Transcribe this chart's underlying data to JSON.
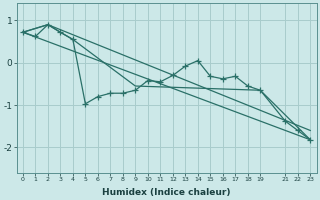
{
  "xlabel": "Humidex (Indice chaleur)",
  "bg_color": "#cce8e8",
  "grid_color": "#a8cccc",
  "line_color": "#2a7068",
  "xlim": [
    -0.5,
    23.5
  ],
  "ylim": [
    -2.6,
    1.4
  ],
  "yticks": [
    -2,
    -1,
    0,
    1
  ],
  "xticks": [
    0,
    1,
    2,
    3,
    4,
    5,
    6,
    7,
    8,
    9,
    10,
    11,
    12,
    13,
    14,
    15,
    16,
    17,
    18,
    19,
    21,
    22,
    23
  ],
  "xtick_labels": [
    "0",
    "1",
    "2",
    "3",
    "4",
    "5",
    "6",
    "7",
    "8",
    "9",
    "10",
    "11",
    "12",
    "13",
    "14",
    "15",
    "16",
    "17",
    "18",
    "19",
    "21",
    "22",
    "23"
  ],
  "jagged_x": [
    0,
    1,
    2,
    3,
    4,
    5,
    6,
    7,
    8,
    9,
    10,
    11,
    12,
    13,
    14,
    15,
    16,
    17,
    18,
    19,
    21,
    22,
    23
  ],
  "jagged_y": [
    0.72,
    0.62,
    0.9,
    0.72,
    0.55,
    -0.97,
    -0.8,
    -0.72,
    -0.72,
    -0.65,
    -0.42,
    -0.45,
    -0.3,
    -0.08,
    0.05,
    -0.32,
    -0.38,
    -0.32,
    -0.55,
    -0.65,
    -1.38,
    -1.6,
    -1.82
  ],
  "trend1_x": [
    0,
    2,
    3,
    4,
    9,
    19,
    23
  ],
  "trend1_y": [
    0.72,
    0.9,
    0.72,
    0.55,
    -0.55,
    -0.65,
    -1.82
  ],
  "trend2_x": [
    0,
    2,
    23
  ],
  "trend2_y": [
    0.72,
    0.9,
    -1.6
  ],
  "trend3_x": [
    0,
    23
  ],
  "trend3_y": [
    0.72,
    -1.82
  ],
  "lw": 0.9,
  "ms": 4
}
